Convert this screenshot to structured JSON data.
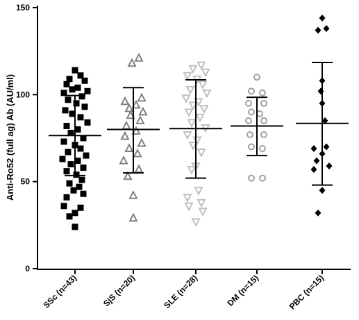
{
  "chart_data": {
    "type": "scatter",
    "title": "",
    "xlabel": "",
    "ylabel": "Anti-Ro52 (full ag) Ab (AU/ml)",
    "ylim": [
      0,
      150
    ],
    "yticks": [
      0,
      50,
      100,
      150
    ],
    "grid": false,
    "categories": [
      "SSc (n=43)",
      "SjS (n=20)",
      "SLE (n=28)",
      "DM (n=15)",
      "PBC (n=15)"
    ],
    "series": [
      {
        "category": "SSc (n=43)",
        "marker": "filled-square",
        "color": "#000000",
        "mean": 76.5,
        "sd_low": 53.5,
        "sd_high": 99.5,
        "points": [
          {
            "dx": 0.0,
            "y": 114
          },
          {
            "dx": 0.4,
            "y": 111
          },
          {
            "dx": -0.4,
            "y": 109
          },
          {
            "dx": 0.7,
            "y": 108
          },
          {
            "dx": -0.6,
            "y": 106
          },
          {
            "dx": 0.2,
            "y": 104
          },
          {
            "dx": -0.2,
            "y": 103
          },
          {
            "dx": 0.9,
            "y": 102
          },
          {
            "dx": -0.8,
            "y": 101
          },
          {
            "dx": 0.5,
            "y": 99
          },
          {
            "dx": -0.5,
            "y": 97
          },
          {
            "dx": 0.1,
            "y": 95
          },
          {
            "dx": 0.7,
            "y": 93
          },
          {
            "dx": -0.7,
            "y": 91
          },
          {
            "dx": -0.2,
            "y": 89
          },
          {
            "dx": 0.4,
            "y": 87
          },
          {
            "dx": 0.9,
            "y": 84
          },
          {
            "dx": -0.6,
            "y": 82
          },
          {
            "dx": 0.2,
            "y": 80
          },
          {
            "dx": -0.3,
            "y": 78
          },
          {
            "dx": 0.6,
            "y": 75
          },
          {
            "dx": -0.8,
            "y": 73
          },
          {
            "dx": 0.0,
            "y": 71
          },
          {
            "dx": 0.4,
            "y": 69
          },
          {
            "dx": -0.5,
            "y": 67
          },
          {
            "dx": 0.8,
            "y": 65
          },
          {
            "dx": -0.9,
            "y": 63
          },
          {
            "dx": 0.2,
            "y": 62
          },
          {
            "dx": -0.3,
            "y": 60
          },
          {
            "dx": 0.6,
            "y": 58
          },
          {
            "dx": -0.6,
            "y": 56
          },
          {
            "dx": 0.1,
            "y": 54
          },
          {
            "dx": 0.5,
            "y": 51
          },
          {
            "dx": -0.4,
            "y": 49
          },
          {
            "dx": 0.3,
            "y": 47
          },
          {
            "dx": -0.1,
            "y": 45
          },
          {
            "dx": 0.6,
            "y": 43
          },
          {
            "dx": -0.6,
            "y": 41
          },
          {
            "dx": -0.8,
            "y": 36
          },
          {
            "dx": 0.4,
            "y": 35
          },
          {
            "dx": 0.0,
            "y": 32
          },
          {
            "dx": -0.4,
            "y": 30
          },
          {
            "dx": 0.0,
            "y": 24
          }
        ]
      },
      {
        "category": "SjS (n=20)",
        "marker": "open-triangle-up",
        "color": "#808080",
        "mean": 80,
        "sd_low": 55,
        "sd_high": 104,
        "points": [
          {
            "dx": 0.4,
            "y": 121
          },
          {
            "dx": -0.1,
            "y": 118
          },
          {
            "dx": 0.6,
            "y": 98
          },
          {
            "dx": -0.6,
            "y": 96
          },
          {
            "dx": 0.2,
            "y": 94
          },
          {
            "dx": -0.3,
            "y": 92
          },
          {
            "dx": 0.7,
            "y": 90
          },
          {
            "dx": -0.2,
            "y": 88
          },
          {
            "dx": 0.5,
            "y": 85
          },
          {
            "dx": -0.5,
            "y": 82
          },
          {
            "dx": 0.2,
            "y": 79
          },
          {
            "dx": -0.6,
            "y": 76
          },
          {
            "dx": 0.6,
            "y": 72
          },
          {
            "dx": -0.3,
            "y": 69
          },
          {
            "dx": 0.3,
            "y": 66
          },
          {
            "dx": -0.7,
            "y": 62
          },
          {
            "dx": 0.4,
            "y": 57
          },
          {
            "dx": -0.4,
            "y": 53
          },
          {
            "dx": 0.0,
            "y": 42
          },
          {
            "dx": 0.0,
            "y": 29
          }
        ]
      },
      {
        "category": "SLE (n=28)",
        "marker": "open-triangle-down",
        "color": "#c0c0c0",
        "mean": 80.5,
        "sd_low": 52,
        "sd_high": 108.5,
        "points": [
          {
            "dx": 0.4,
            "y": 117
          },
          {
            "dx": -0.2,
            "y": 115
          },
          {
            "dx": 0.7,
            "y": 113
          },
          {
            "dx": -0.6,
            "y": 111
          },
          {
            "dx": 0.1,
            "y": 109
          },
          {
            "dx": 0.5,
            "y": 106
          },
          {
            "dx": -0.4,
            "y": 103
          },
          {
            "dx": 0.8,
            "y": 101
          },
          {
            "dx": -0.7,
            "y": 98
          },
          {
            "dx": 0.2,
            "y": 96
          },
          {
            "dx": -0.2,
            "y": 94
          },
          {
            "dx": 0.6,
            "y": 92
          },
          {
            "dx": -0.5,
            "y": 90
          },
          {
            "dx": 0.3,
            "y": 87
          },
          {
            "dx": -0.3,
            "y": 84
          },
          {
            "dx": 0.7,
            "y": 81
          },
          {
            "dx": -0.6,
            "y": 77
          },
          {
            "dx": 0.1,
            "y": 74
          },
          {
            "dx": -0.2,
            "y": 71
          },
          {
            "dx": 0.4,
            "y": 67
          },
          {
            "dx": 0.0,
            "y": 59
          },
          {
            "dx": -0.3,
            "y": 57
          },
          {
            "dx": 0.2,
            "y": 45
          },
          {
            "dx": -0.6,
            "y": 41
          },
          {
            "dx": 0.4,
            "y": 38
          },
          {
            "dx": -0.5,
            "y": 36
          },
          {
            "dx": 0.5,
            "y": 33
          },
          {
            "dx": 0.0,
            "y": 27
          }
        ]
      },
      {
        "category": "DM (n=15)",
        "marker": "open-circle",
        "color": "#a0a0a0",
        "mean": 82,
        "sd_low": 65,
        "sd_high": 98.5,
        "points": [
          {
            "dx": 0.0,
            "y": 110
          },
          {
            "dx": -0.4,
            "y": 102
          },
          {
            "dx": 0.4,
            "y": 101
          },
          {
            "dx": -0.6,
            "y": 95
          },
          {
            "dx": 0.5,
            "y": 95
          },
          {
            "dx": -0.4,
            "y": 90
          },
          {
            "dx": 0.2,
            "y": 89
          },
          {
            "dx": -0.6,
            "y": 85
          },
          {
            "dx": 0.5,
            "y": 85
          },
          {
            "dx": -0.5,
            "y": 77
          },
          {
            "dx": 0.5,
            "y": 77
          },
          {
            "dx": -0.4,
            "y": 70
          },
          {
            "dx": 0.4,
            "y": 69
          },
          {
            "dx": -0.4,
            "y": 52
          },
          {
            "dx": 0.4,
            "y": 52
          }
        ]
      },
      {
        "category": "PBC (n=15)",
        "marker": "filled-diamond",
        "color": "#000000",
        "mean": 83.5,
        "sd_low": 48,
        "sd_high": 118.5,
        "points": [
          {
            "dx": 0.0,
            "y": 144
          },
          {
            "dx": -0.3,
            "y": 137
          },
          {
            "dx": 0.3,
            "y": 138
          },
          {
            "dx": 0.0,
            "y": 108
          },
          {
            "dx": -0.1,
            "y": 102
          },
          {
            "dx": 0.0,
            "y": 95
          },
          {
            "dx": 0.2,
            "y": 85
          },
          {
            "dx": -0.6,
            "y": 69
          },
          {
            "dx": 0.3,
            "y": 70
          },
          {
            "dx": 0.0,
            "y": 66
          },
          {
            "dx": -0.4,
            "y": 62
          },
          {
            "dx": 0.5,
            "y": 59
          },
          {
            "dx": -0.6,
            "y": 57
          },
          {
            "dx": 0.0,
            "y": 45
          },
          {
            "dx": -0.3,
            "y": 32
          }
        ]
      }
    ]
  }
}
